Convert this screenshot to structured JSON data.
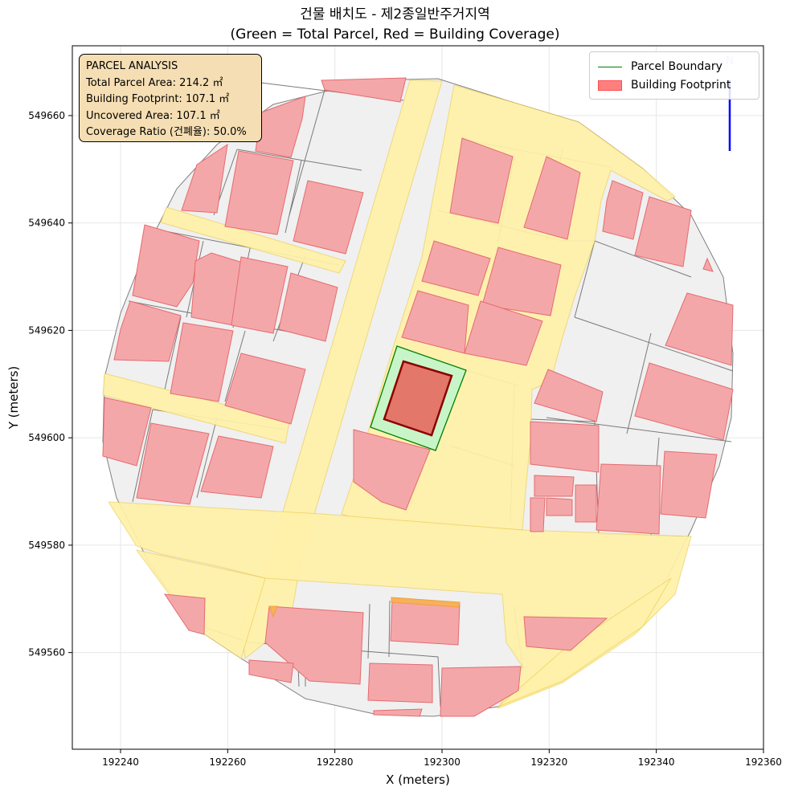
{
  "title": {
    "line1": "건물 배치도 - 제2종일반주거지역",
    "line2": "(Green = Total Parcel, Red = Building Coverage)"
  },
  "axes": {
    "xlabel": "X (meters)",
    "ylabel": "Y (meters)",
    "xlim": [
      192231,
      192360
    ],
    "ylim": [
      549542,
      549673
    ],
    "x_ticks": [
      "192240",
      "192260",
      "192280",
      "192300",
      "192320",
      "192340",
      "192360"
    ],
    "y_ticks": [
      "549560",
      "549580",
      "549600",
      "549620",
      "549640",
      "549660"
    ],
    "grid": true
  },
  "info_box": {
    "heading": "PARCEL ANALYSIS",
    "total_area": "Total Parcel Area: 214.2 ㎡",
    "footprint": "Building Footprint: 107.1 ㎡",
    "uncovered": "Uncovered Area: 107.1 ㎡",
    "coverage": "Coverage Ratio (건폐율): 50.0%"
  },
  "legend": {
    "placement": "top-right",
    "parcel_label": "Parcel Boundary",
    "building_label": "Building Footprint"
  },
  "north_arrow": {
    "label": "N"
  },
  "colors": {
    "parcel_fill": "#c8f5c8",
    "parcel_edge": "#008000",
    "building_fill": "#e2776a",
    "building_edge": "#8b0000",
    "context_building": "#f4a7a9",
    "road": "#fff1a8",
    "lot": "#f0f0f0"
  },
  "parcel_analysis": {
    "total_parcel_area_m2": 214.2,
    "building_footprint_m2": 107.1,
    "uncovered_area_m2": 107.1,
    "coverage_ratio_pct": 50.0
  }
}
